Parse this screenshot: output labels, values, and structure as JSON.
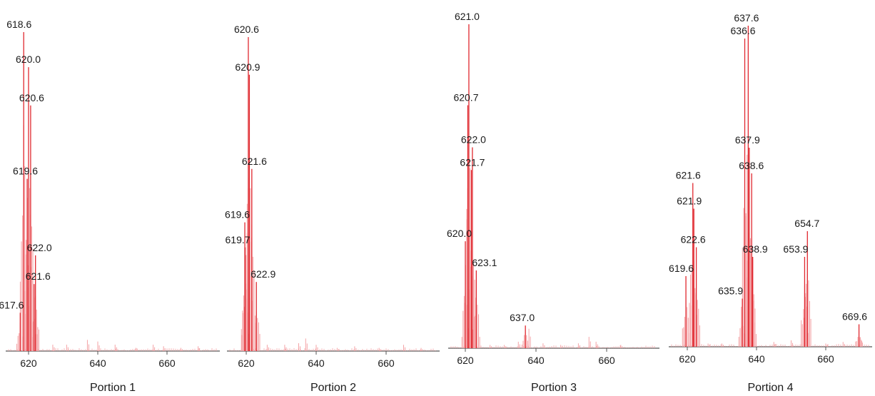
{
  "chart_data": [
    {
      "type": "line",
      "title": "Portion 1",
      "x_ticks": [
        "620",
        "640",
        "660"
      ],
      "xlim": [
        614,
        674
      ],
      "peaks": [
        {
          "label": "618.6",
          "x": 618.6,
          "y": 1.0
        },
        {
          "label": "620.0",
          "x": 620.0,
          "y": 0.89
        },
        {
          "label": "620.6",
          "x": 620.6,
          "y": 0.77
        },
        {
          "label": "619.6",
          "x": 619.6,
          "y": 0.54
        },
        {
          "label": "622.0",
          "x": 622.0,
          "y": 0.3
        },
        {
          "label": "621.6",
          "x": 621.6,
          "y": 0.21
        },
        {
          "label": "617.6",
          "x": 617.6,
          "y": 0.12
        }
      ],
      "noise": [
        [
          627,
          0.02
        ],
        [
          631,
          0.02
        ],
        [
          637,
          0.035
        ],
        [
          640,
          0.03
        ],
        [
          645,
          0.02
        ],
        [
          651,
          0.01
        ],
        [
          656,
          0.02
        ],
        [
          659,
          0.015
        ],
        [
          664,
          0.01
        ],
        [
          669,
          0.015
        ]
      ]
    },
    {
      "type": "line",
      "title": "Portion 2",
      "x_ticks": [
        "620",
        "640",
        "660"
      ],
      "xlim": [
        615,
        676
      ],
      "peaks": [
        {
          "label": "620.6",
          "x": 620.6,
          "y": 1.0
        },
        {
          "label": "620.9",
          "x": 620.9,
          "y": 0.88
        },
        {
          "label": "621.6",
          "x": 621.6,
          "y": 0.58
        },
        {
          "label": "619.6",
          "x": 619.6,
          "y": 0.41
        },
        {
          "label": "619.7",
          "x": 619.7,
          "y": 0.33
        },
        {
          "label": "622.9",
          "x": 622.9,
          "y": 0.22
        }
      ],
      "noise": [
        [
          626,
          0.02
        ],
        [
          631,
          0.02
        ],
        [
          635,
          0.025
        ],
        [
          637,
          0.04
        ],
        [
          640,
          0.02
        ],
        [
          646,
          0.01
        ],
        [
          651,
          0.015
        ],
        [
          658,
          0.01
        ],
        [
          665,
          0.02
        ],
        [
          670,
          0.01
        ]
      ]
    },
    {
      "type": "line",
      "title": "Portion 3",
      "x_ticks": [
        "620",
        "640",
        "660"
      ],
      "xlim": [
        616,
        676
      ],
      "peaks": [
        {
          "label": "621.0",
          "x": 621.0,
          "y": 1.0
        },
        {
          "label": "620.7",
          "x": 620.7,
          "y": 0.75
        },
        {
          "label": "622.0",
          "x": 622.0,
          "y": 0.62
        },
        {
          "label": "621.7",
          "x": 621.7,
          "y": 0.55
        },
        {
          "label": "620.0",
          "x": 620.0,
          "y": 0.33
        },
        {
          "label": "623.1",
          "x": 623.1,
          "y": 0.24
        },
        {
          "label": "637.0",
          "x": 637.0,
          "y": 0.07
        }
      ],
      "noise": [
        [
          627,
          0.01
        ],
        [
          631,
          0.01
        ],
        [
          635,
          0.02
        ],
        [
          638,
          0.06
        ],
        [
          642,
          0.015
        ],
        [
          647,
          0.01
        ],
        [
          652,
          0.015
        ],
        [
          655,
          0.035
        ],
        [
          657,
          0.02
        ],
        [
          664,
          0.01
        ]
      ]
    },
    {
      "type": "line",
      "title": "Portion 4",
      "x_ticks": [
        "620",
        "640",
        "660"
      ],
      "xlim": [
        615,
        674
      ],
      "peaks": [
        {
          "label": "637.6",
          "x": 637.6,
          "y": 1.0
        },
        {
          "label": "636.6",
          "x": 636.6,
          "y": 0.96
        },
        {
          "label": "637.9",
          "x": 637.9,
          "y": 0.62
        },
        {
          "label": "638.6",
          "x": 638.6,
          "y": 0.54
        },
        {
          "label": "621.6",
          "x": 621.6,
          "y": 0.51
        },
        {
          "label": "621.9",
          "x": 621.9,
          "y": 0.43
        },
        {
          "label": "622.6",
          "x": 622.6,
          "y": 0.31
        },
        {
          "label": "654.7",
          "x": 654.7,
          "y": 0.36
        },
        {
          "label": "653.9",
          "x": 653.9,
          "y": 0.28
        },
        {
          "label": "638.9",
          "x": 638.9,
          "y": 0.28
        },
        {
          "label": "619.6",
          "x": 619.6,
          "y": 0.22
        },
        {
          "label": "635.9",
          "x": 635.9,
          "y": 0.15
        },
        {
          "label": "669.6",
          "x": 669.6,
          "y": 0.07
        }
      ],
      "noise": [
        [
          626,
          0.01
        ],
        [
          630,
          0.01
        ],
        [
          645,
          0.015
        ],
        [
          650,
          0.02
        ],
        [
          660,
          0.01
        ],
        [
          665,
          0.015
        ],
        [
          670,
          0.03
        ]
      ]
    }
  ],
  "colors": {
    "peak": "#e0282f",
    "peak_light": "#f4a3a6",
    "axis": "#555555"
  }
}
